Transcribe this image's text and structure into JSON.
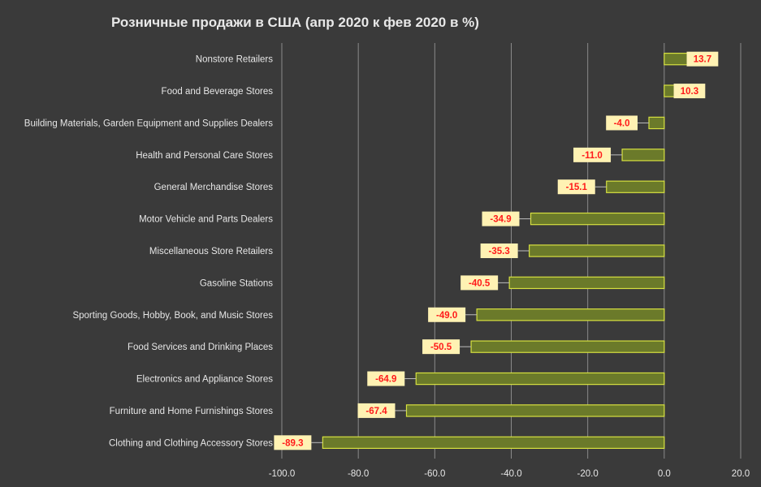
{
  "chart_data": {
    "type": "bar",
    "orientation": "horizontal",
    "title": "Розничные продажи в США (апр 2020 к фев 2020 в %)",
    "categories": [
      "Nonstore Retailers",
      "Food and Beverage Stores",
      "Building Materials, Garden Equipment and Supplies Dealers",
      "Health and Personal Care Stores",
      "General Merchandise Stores",
      "Motor Vehicle and Parts Dealers",
      "Miscellaneous Store Retailers",
      "Gasoline Stations",
      "Sporting Goods, Hobby, Book, and Music Stores",
      "Food Services and Drinking Places",
      "Electronics and Appliance Stores",
      "Furniture and Home Furnishings Stores",
      "Clothing and Clothing Accessory Stores"
    ],
    "values": [
      13.7,
      10.3,
      -4.0,
      -11.0,
      -15.1,
      -34.9,
      -35.3,
      -40.5,
      -49.0,
      -50.5,
      -64.9,
      -67.4,
      -89.3
    ],
    "data_labels": [
      "13.7",
      "10.3",
      "-4.0",
      "-11.0",
      "-15.1",
      "-34.9",
      "-35.3",
      "-40.5",
      "-49.0",
      "-50.5",
      "-64.9",
      "-67.4",
      "-89.3"
    ],
    "xlim": [
      -100,
      20
    ],
    "xticks": [
      -100,
      -80,
      -60,
      -40,
      -20,
      0,
      20
    ],
    "xtick_labels": [
      "-100.0",
      "-80.0",
      "-60.0",
      "-40.0",
      "-20.0",
      "0.0",
      "20.0"
    ],
    "grid": true,
    "legend": "none",
    "colors": {
      "background": "#3a3a3a",
      "bar_fill": "#6b7a2a",
      "bar_stroke": "#d6e040",
      "label_box": "#fff2b3",
      "label_text": "#ff1a1a",
      "gridline": "#8a8a8a",
      "text": "#e6e6e6"
    }
  }
}
